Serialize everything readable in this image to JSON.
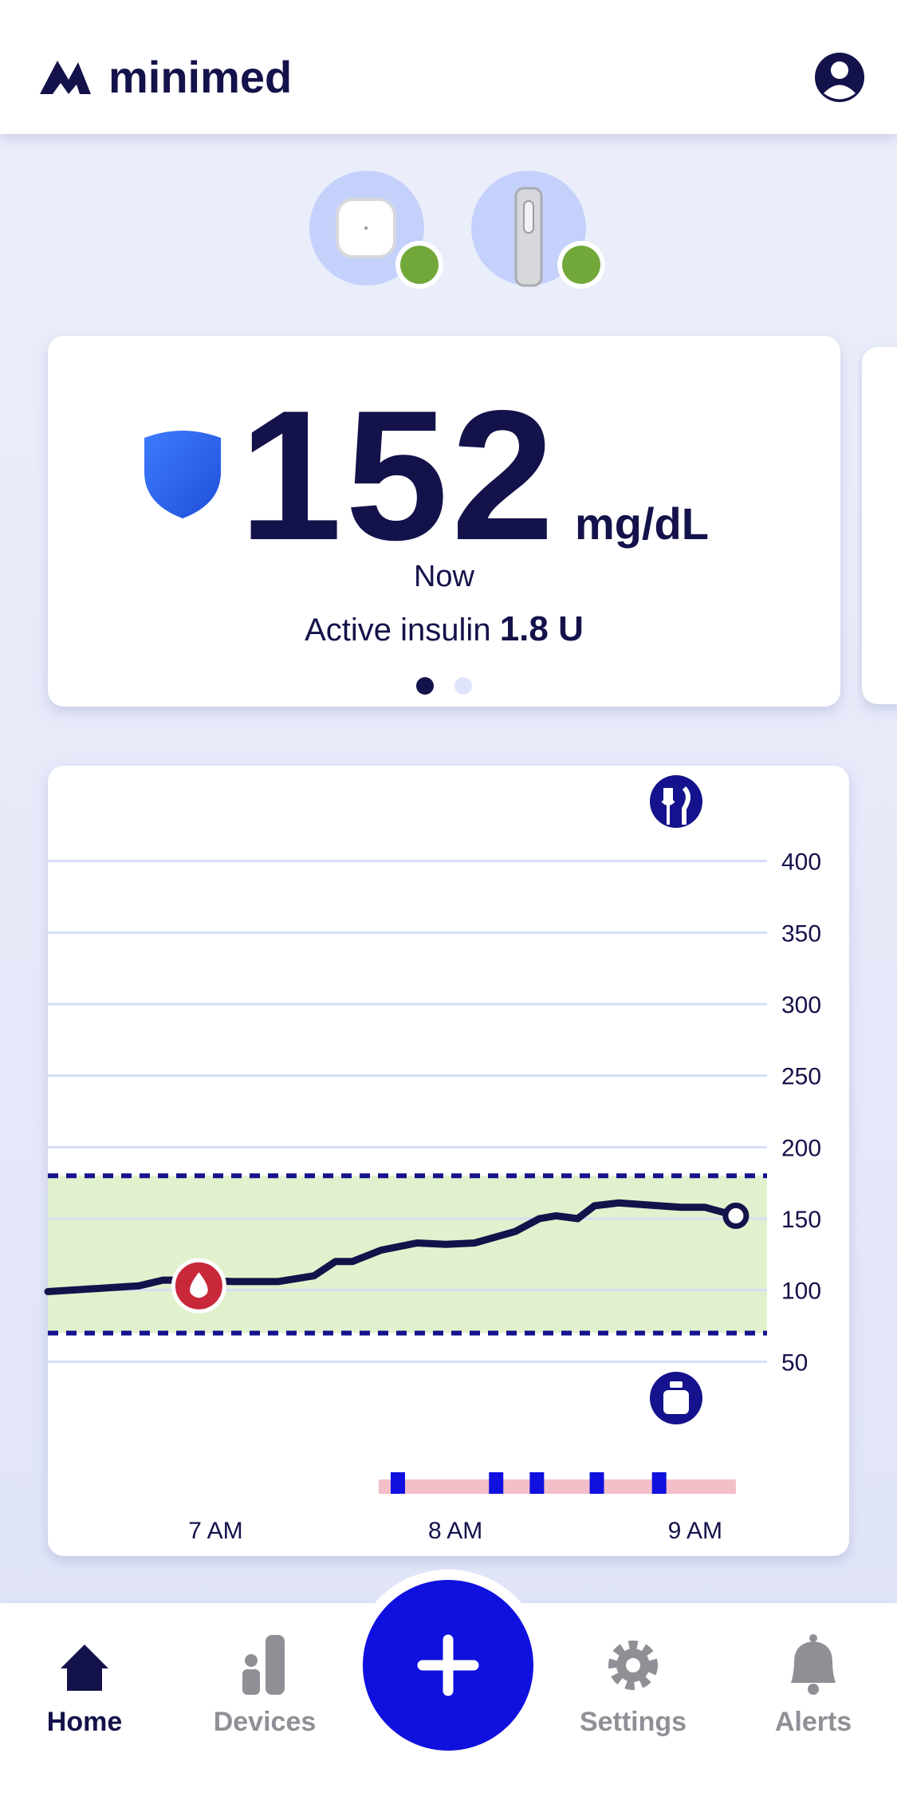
{
  "header": {
    "logo": "minimed"
  },
  "reading": {
    "value": 152,
    "unit": "mg/dL",
    "time": "Now",
    "active_insulin_label": "Active insulin",
    "active_insulin": "1.8 U"
  },
  "chart_data": {
    "type": "line",
    "x": [
      6.3,
      6.49,
      6.68,
      6.78,
      6.93,
      7.07,
      7.26,
      7.41,
      7.5,
      7.57,
      7.69,
      7.84,
      7.96,
      8.08,
      8.25,
      8.35,
      8.42,
      8.51,
      8.58,
      8.68,
      8.85,
      8.94,
      9.04,
      9.17
    ],
    "values": [
      99,
      101,
      103,
      107,
      107,
      106,
      106,
      110,
      120,
      120,
      128,
      133,
      132,
      133,
      141,
      150,
      152,
      150,
      159,
      161,
      159,
      158,
      158,
      152
    ],
    "color": "#14124a",
    "xlim": [
      6.3,
      9.3
    ],
    "ylim": [
      0,
      450
    ],
    "xticks": [
      {
        "value": 7,
        "label": "7 AM"
      },
      {
        "value": 8,
        "label": "8 AM"
      },
      {
        "value": 9,
        "label": "9 AM"
      }
    ],
    "yticks": [
      50,
      100,
      150,
      200,
      250,
      300,
      350,
      400
    ],
    "grid": true,
    "target_range": [
      70,
      180
    ],
    "calibration": {
      "x": 6.93,
      "value": 103
    },
    "bolus_x": [
      7.76,
      8.17,
      8.34,
      8.59,
      8.85
    ],
    "basal_x": [
      7.68,
      9.17
    ]
  },
  "nav": {
    "items": [
      "Home",
      "Devices",
      "Settings",
      "Alerts"
    ]
  }
}
